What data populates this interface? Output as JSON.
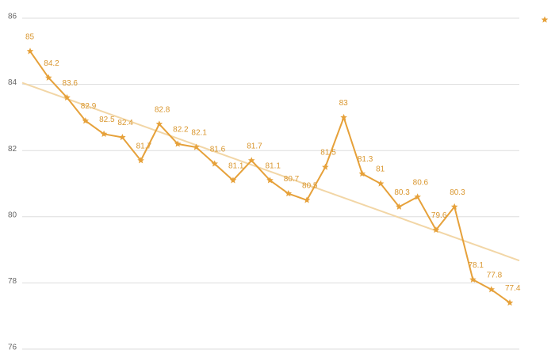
{
  "chart_data": {
    "type": "line",
    "series": [
      {
        "color": "#e6a13a",
        "values": [
          85,
          84.2,
          83.6,
          82.9,
          82.5,
          82.4,
          81.7,
          82.8,
          82.2,
          82.1,
          81.6,
          81.1,
          81.7,
          81.1,
          80.7,
          80.5,
          81.5,
          83,
          81.3,
          81,
          80.3,
          80.6,
          79.6,
          80.3,
          78.1,
          77.8,
          77.4
        ]
      }
    ],
    "ylim": [
      76,
      86
    ],
    "yticks": [
      76,
      78,
      80,
      82,
      84,
      86
    ],
    "grid": true,
    "trendline": true,
    "trendline_color": "#f2d6a6",
    "data_labels": true,
    "markers": "star",
    "legend": "top-right"
  }
}
